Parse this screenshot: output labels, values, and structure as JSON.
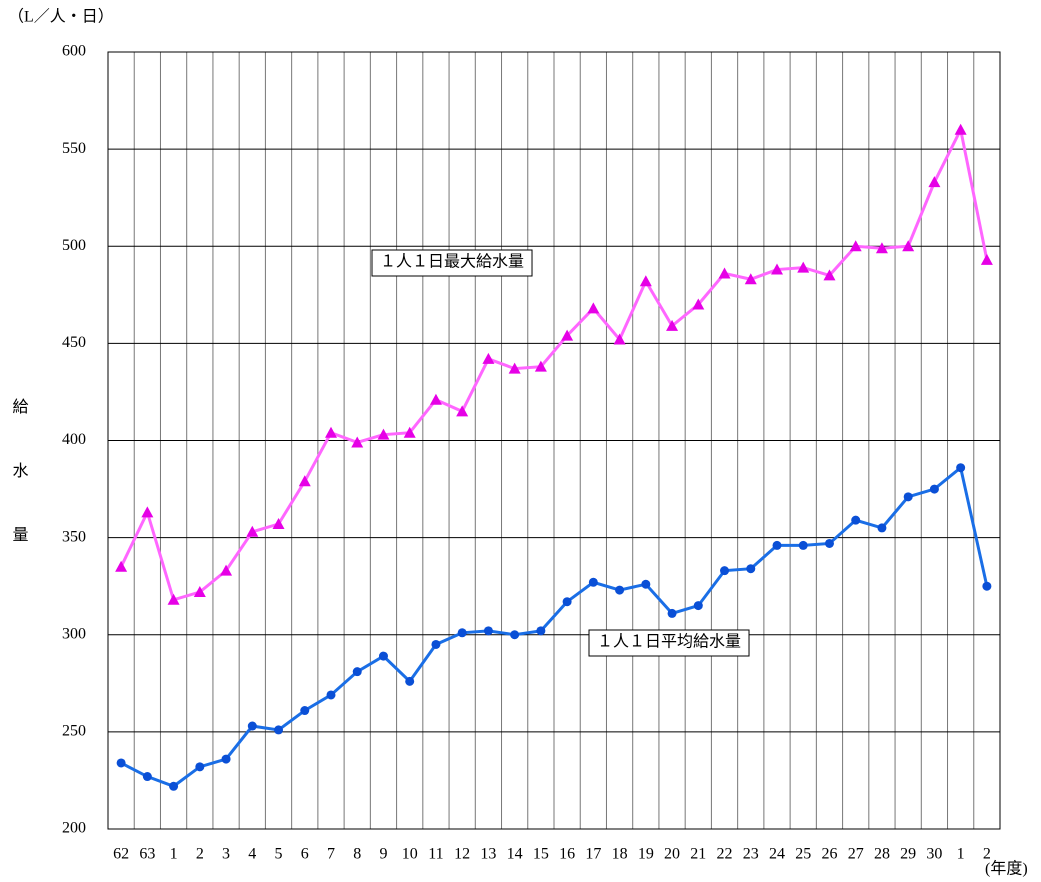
{
  "chart_data": {
    "type": "line",
    "unit_label": "（L／人・日）",
    "y_label": "給水量",
    "x_label": "(年度)",
    "categories": [
      "62",
      "63",
      "1",
      "2",
      "3",
      "4",
      "5",
      "6",
      "7",
      "8",
      "9",
      "10",
      "11",
      "12",
      "13",
      "14",
      "15",
      "16",
      "17",
      "18",
      "19",
      "20",
      "21",
      "22",
      "23",
      "24",
      "25",
      "26",
      "27",
      "28",
      "29",
      "30",
      "1",
      "2"
    ],
    "series": [
      {
        "name": "１人１日最大給水量",
        "color": "#ff66ff",
        "marker_color": "#e600e6",
        "marker": "triangle",
        "values": [
          335,
          363,
          318,
          322,
          333,
          353,
          357,
          379,
          404,
          399,
          403,
          404,
          421,
          415,
          442,
          437,
          438,
          454,
          468,
          452,
          482,
          459,
          470,
          486,
          483,
          488,
          489,
          485,
          500,
          499,
          500,
          533,
          560,
          493
        ]
      },
      {
        "name": "１人１日平均給水量",
        "color": "#1a6ee6",
        "marker_color": "#0a4fd6",
        "marker": "circle",
        "values": [
          234,
          227,
          222,
          232,
          236,
          253,
          251,
          261,
          269,
          281,
          289,
          276,
          295,
          301,
          302,
          300,
          302,
          317,
          327,
          323,
          326,
          311,
          315,
          333,
          334,
          346,
          346,
          347,
          359,
          355,
          371,
          375,
          386,
          325
        ]
      }
    ],
    "ylim": [
      200,
      600
    ],
    "yticks": [
      200,
      250,
      300,
      350,
      400,
      450,
      500,
      550,
      600
    ],
    "grid": true
  }
}
